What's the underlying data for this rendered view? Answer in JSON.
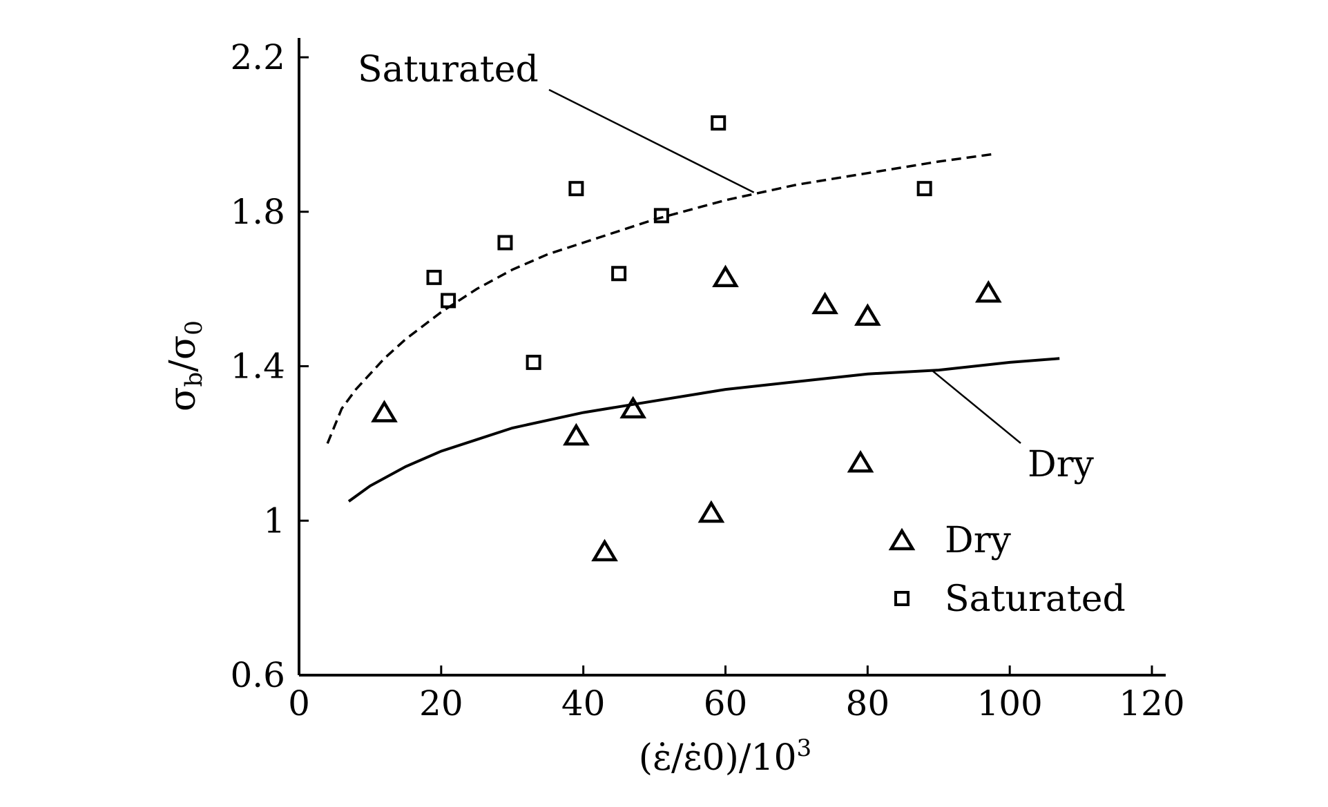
{
  "chart_data": {
    "type": "scatter",
    "xlabel": "(ε̇/ε̇0)/10",
    "xlabel_sup": "3",
    "ylabel_main": "σ",
    "ylabel_sub1": "b",
    "ylabel_mid": "/σ",
    "ylabel_sub2": "0",
    "xlim": [
      0,
      120
    ],
    "ylim": [
      0.6,
      2.2
    ],
    "x_ticks": [
      0,
      20,
      40,
      60,
      80,
      100,
      120
    ],
    "x_tick_labels": [
      "0",
      "20",
      "40",
      "60",
      "80",
      "100",
      "120"
    ],
    "y_ticks": [
      0.6,
      1.0,
      1.4,
      1.8,
      2.2
    ],
    "y_tick_labels": [
      "0.6",
      "1",
      "1.4",
      "1.8",
      "2.2"
    ],
    "grid": false,
    "legend_position": "bottom-right",
    "series": [
      {
        "name": "Dry",
        "marker": "triangle",
        "points": [
          [
            12,
            1.28
          ],
          [
            39,
            1.22
          ],
          [
            43,
            0.92
          ],
          [
            47,
            1.29
          ],
          [
            58,
            1.02
          ],
          [
            60,
            1.63
          ],
          [
            74,
            1.56
          ],
          [
            79,
            1.15
          ],
          [
            80,
            1.53
          ],
          [
            97,
            1.59
          ]
        ]
      },
      {
        "name": "Saturated",
        "marker": "square",
        "points": [
          [
            19,
            1.63
          ],
          [
            21,
            1.57
          ],
          [
            29,
            1.72
          ],
          [
            33,
            1.41
          ],
          [
            39,
            1.86
          ],
          [
            45,
            1.64
          ],
          [
            51,
            1.79
          ],
          [
            59,
            2.03
          ],
          [
            88,
            1.86
          ]
        ]
      }
    ],
    "fit_curves": [
      {
        "label": "Saturated",
        "style": "dashed",
        "points": [
          [
            4,
            1.2
          ],
          [
            6,
            1.29
          ],
          [
            8,
            1.34
          ],
          [
            10,
            1.38
          ],
          [
            12,
            1.42
          ],
          [
            15,
            1.47
          ],
          [
            20,
            1.54
          ],
          [
            25,
            1.6
          ],
          [
            30,
            1.65
          ],
          [
            35,
            1.69
          ],
          [
            40,
            1.72
          ],
          [
            50,
            1.78
          ],
          [
            60,
            1.83
          ],
          [
            70,
            1.87
          ],
          [
            80,
            1.9
          ],
          [
            90,
            1.93
          ],
          [
            98,
            1.95
          ]
        ]
      },
      {
        "label": "Dry",
        "style": "solid",
        "points": [
          [
            7,
            1.05
          ],
          [
            10,
            1.09
          ],
          [
            15,
            1.14
          ],
          [
            20,
            1.18
          ],
          [
            25,
            1.21
          ],
          [
            30,
            1.24
          ],
          [
            40,
            1.28
          ],
          [
            50,
            1.31
          ],
          [
            60,
            1.34
          ],
          [
            70,
            1.36
          ],
          [
            80,
            1.38
          ],
          [
            90,
            1.39
          ],
          [
            100,
            1.41
          ],
          [
            107,
            1.42
          ]
        ]
      }
    ],
    "annotations": [
      {
        "text": "Saturated",
        "anchor_x": 64,
        "anchor_y": 1.85
      },
      {
        "text": "Dry",
        "anchor_x": 89,
        "anchor_y": 1.39
      }
    ]
  }
}
